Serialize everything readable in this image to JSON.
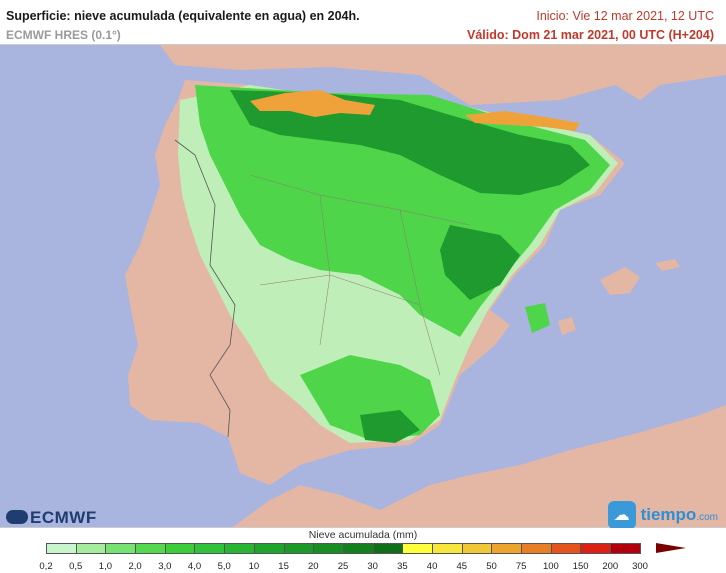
{
  "header": {
    "title": "Superficie: nieve acumulada (equivalente en agua) en 204h.",
    "model": "ECMWF HRES (0.1°)",
    "init": "Inicio: Vie 12 mar 2021, 12 UTC",
    "valid": "Válido: Dom 21 mar 2021, 00 UTC (H+204)"
  },
  "logos": {
    "left": "ECMWF",
    "right_main": "tiempo",
    "right_suffix": ".com"
  },
  "legend": {
    "title": "Nieve acumulada (mm)",
    "labels": [
      "0,2",
      "0,5",
      "1,0",
      "2,0",
      "3,0",
      "4,0",
      "5,0",
      "10",
      "15",
      "20",
      "25",
      "30",
      "35",
      "40",
      "45",
      "50",
      "75",
      "100",
      "150",
      "200",
      "300"
    ],
    "colors": [
      "#c8f5cc",
      "#a6ec9e",
      "#76e271",
      "#54d84e",
      "#3ccd3b",
      "#2fc23a",
      "#27b533",
      "#20a52c",
      "#1b9a27",
      "#178e22",
      "#13801d",
      "#0f7019",
      "#ffff3c",
      "#f7e63c",
      "#f0c834",
      "#eea32c",
      "#e87f24",
      "#e4541c",
      "#dc2014",
      "#b4000c",
      "#8c0000"
    ]
  },
  "colors": {
    "sea": "#a9b4df",
    "land": "#e4b7a5",
    "snow_light": "#bfeeb8",
    "snow_mid": "#4fd54a",
    "snow_dark": "#1f9a2e",
    "snow_peak": "#f0a23a"
  }
}
